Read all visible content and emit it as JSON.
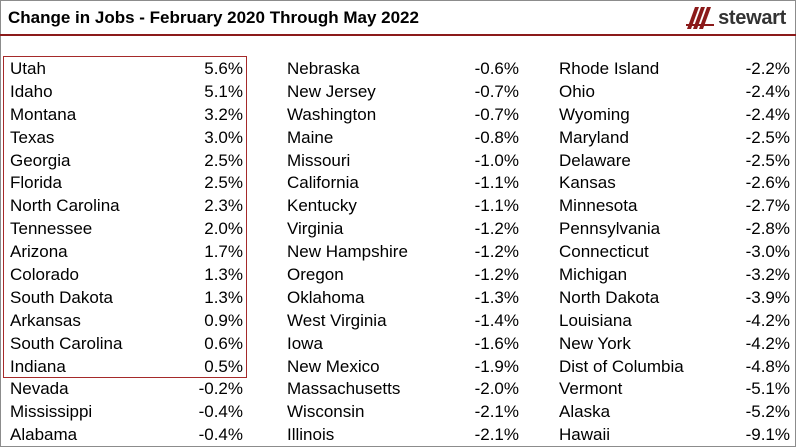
{
  "title": "Change in Jobs - February 2020 Through May 2022",
  "logo": {
    "text": "stewart",
    "icon": "stewart-slash-logo-icon",
    "color": "#8b1a1a"
  },
  "highlight_color": "#a52a2a",
  "columns": [
    [
      {
        "state": "Utah",
        "value": "5.6%"
      },
      {
        "state": "Idaho",
        "value": "5.1%"
      },
      {
        "state": "Montana",
        "value": "3.2%"
      },
      {
        "state": "Texas",
        "value": "3.0%"
      },
      {
        "state": "Georgia",
        "value": "2.5%"
      },
      {
        "state": "Florida",
        "value": "2.5%"
      },
      {
        "state": "North Carolina",
        "value": "2.3%"
      },
      {
        "state": "Tennessee",
        "value": "2.0%"
      },
      {
        "state": "Arizona",
        "value": "1.7%"
      },
      {
        "state": "Colorado",
        "value": "1.3%"
      },
      {
        "state": "South Dakota",
        "value": "1.3%"
      },
      {
        "state": "Arkansas",
        "value": "0.9%"
      },
      {
        "state": "South Carolina",
        "value": "0.6%"
      },
      {
        "state": "Indiana",
        "value": "0.5%"
      },
      {
        "state": "Nevada",
        "value": "-0.2%"
      },
      {
        "state": "Mississippi",
        "value": "-0.4%"
      },
      {
        "state": "Alabama",
        "value": "-0.4%"
      }
    ],
    [
      {
        "state": "Nebraska",
        "value": "-0.6%"
      },
      {
        "state": "New Jersey",
        "value": "-0.7%"
      },
      {
        "state": "Washington",
        "value": "-0.7%"
      },
      {
        "state": "Maine",
        "value": "-0.8%"
      },
      {
        "state": "Missouri",
        "value": "-1.0%"
      },
      {
        "state": "California",
        "value": "-1.1%"
      },
      {
        "state": "Kentucky",
        "value": "-1.1%"
      },
      {
        "state": "Virginia",
        "value": "-1.2%"
      },
      {
        "state": "New Hampshire",
        "value": "-1.2%"
      },
      {
        "state": "Oregon",
        "value": "-1.2%"
      },
      {
        "state": "Oklahoma",
        "value": "-1.3%"
      },
      {
        "state": "West Virginia",
        "value": "-1.4%"
      },
      {
        "state": "Iowa",
        "value": "-1.6%"
      },
      {
        "state": "New Mexico",
        "value": "-1.9%"
      },
      {
        "state": "Massachusetts",
        "value": "-2.0%"
      },
      {
        "state": "Wisconsin",
        "value": "-2.1%"
      },
      {
        "state": "Illinois",
        "value": "-2.1%"
      }
    ],
    [
      {
        "state": "Rhode Island",
        "value": "-2.2%"
      },
      {
        "state": "Ohio",
        "value": "-2.4%"
      },
      {
        "state": "Wyoming",
        "value": "-2.4%"
      },
      {
        "state": "Maryland",
        "value": "-2.5%"
      },
      {
        "state": "Delaware",
        "value": "-2.5%"
      },
      {
        "state": "Kansas",
        "value": "-2.6%"
      },
      {
        "state": "Minnesota",
        "value": "-2.7%"
      },
      {
        "state": "Pennsylvania",
        "value": "-2.8%"
      },
      {
        "state": "Connecticut",
        "value": "-3.0%"
      },
      {
        "state": "Michigan",
        "value": "-3.2%"
      },
      {
        "state": "North Dakota",
        "value": "-3.9%"
      },
      {
        "state": "Louisiana",
        "value": "-4.2%"
      },
      {
        "state": "New York",
        "value": "-4.2%"
      },
      {
        "state": "Dist of Columbia",
        "value": "-4.8%"
      },
      {
        "state": "Vermont",
        "value": "-5.1%"
      },
      {
        "state": "Alaska",
        "value": "-5.2%"
      },
      {
        "state": "Hawaii",
        "value": "-9.1%"
      }
    ]
  ]
}
